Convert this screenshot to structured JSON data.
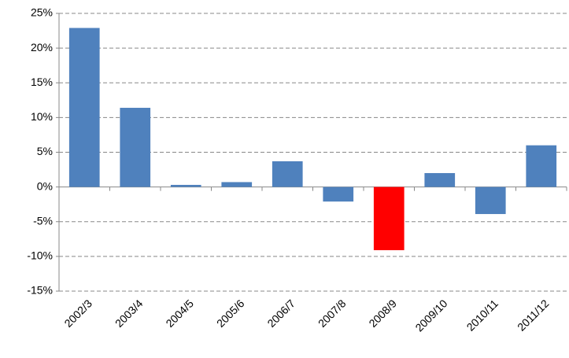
{
  "chart_data": {
    "type": "bar",
    "categories": [
      "2002/3",
      "2003/4",
      "2004/5",
      "2005/6",
      "2006/7",
      "2007/8",
      "2008/9",
      "2009/10",
      "2010/11",
      "2011/12"
    ],
    "values": [
      22.9,
      11.4,
      0.3,
      0.7,
      3.7,
      -2.1,
      -9.1,
      2.0,
      -3.9,
      6.0
    ],
    "colors": [
      "#4f81bd",
      "#4f81bd",
      "#4f81bd",
      "#4f81bd",
      "#4f81bd",
      "#4f81bd",
      "#ff0000",
      "#4f81bd",
      "#4f81bd",
      "#4f81bd"
    ],
    "ylim": [
      -15,
      25
    ],
    "yticks": [
      {
        "value": -15,
        "label": "-15%"
      },
      {
        "value": -10,
        "label": "-10%"
      },
      {
        "value": -5,
        "label": "-5%"
      },
      {
        "value": 0,
        "label": "0%"
      },
      {
        "value": 5,
        "label": "5%"
      },
      {
        "value": 10,
        "label": "10%"
      },
      {
        "value": 15,
        "label": "15%"
      },
      {
        "value": 20,
        "label": "20%"
      },
      {
        "value": 25,
        "label": "25%"
      }
    ],
    "grid": true
  }
}
